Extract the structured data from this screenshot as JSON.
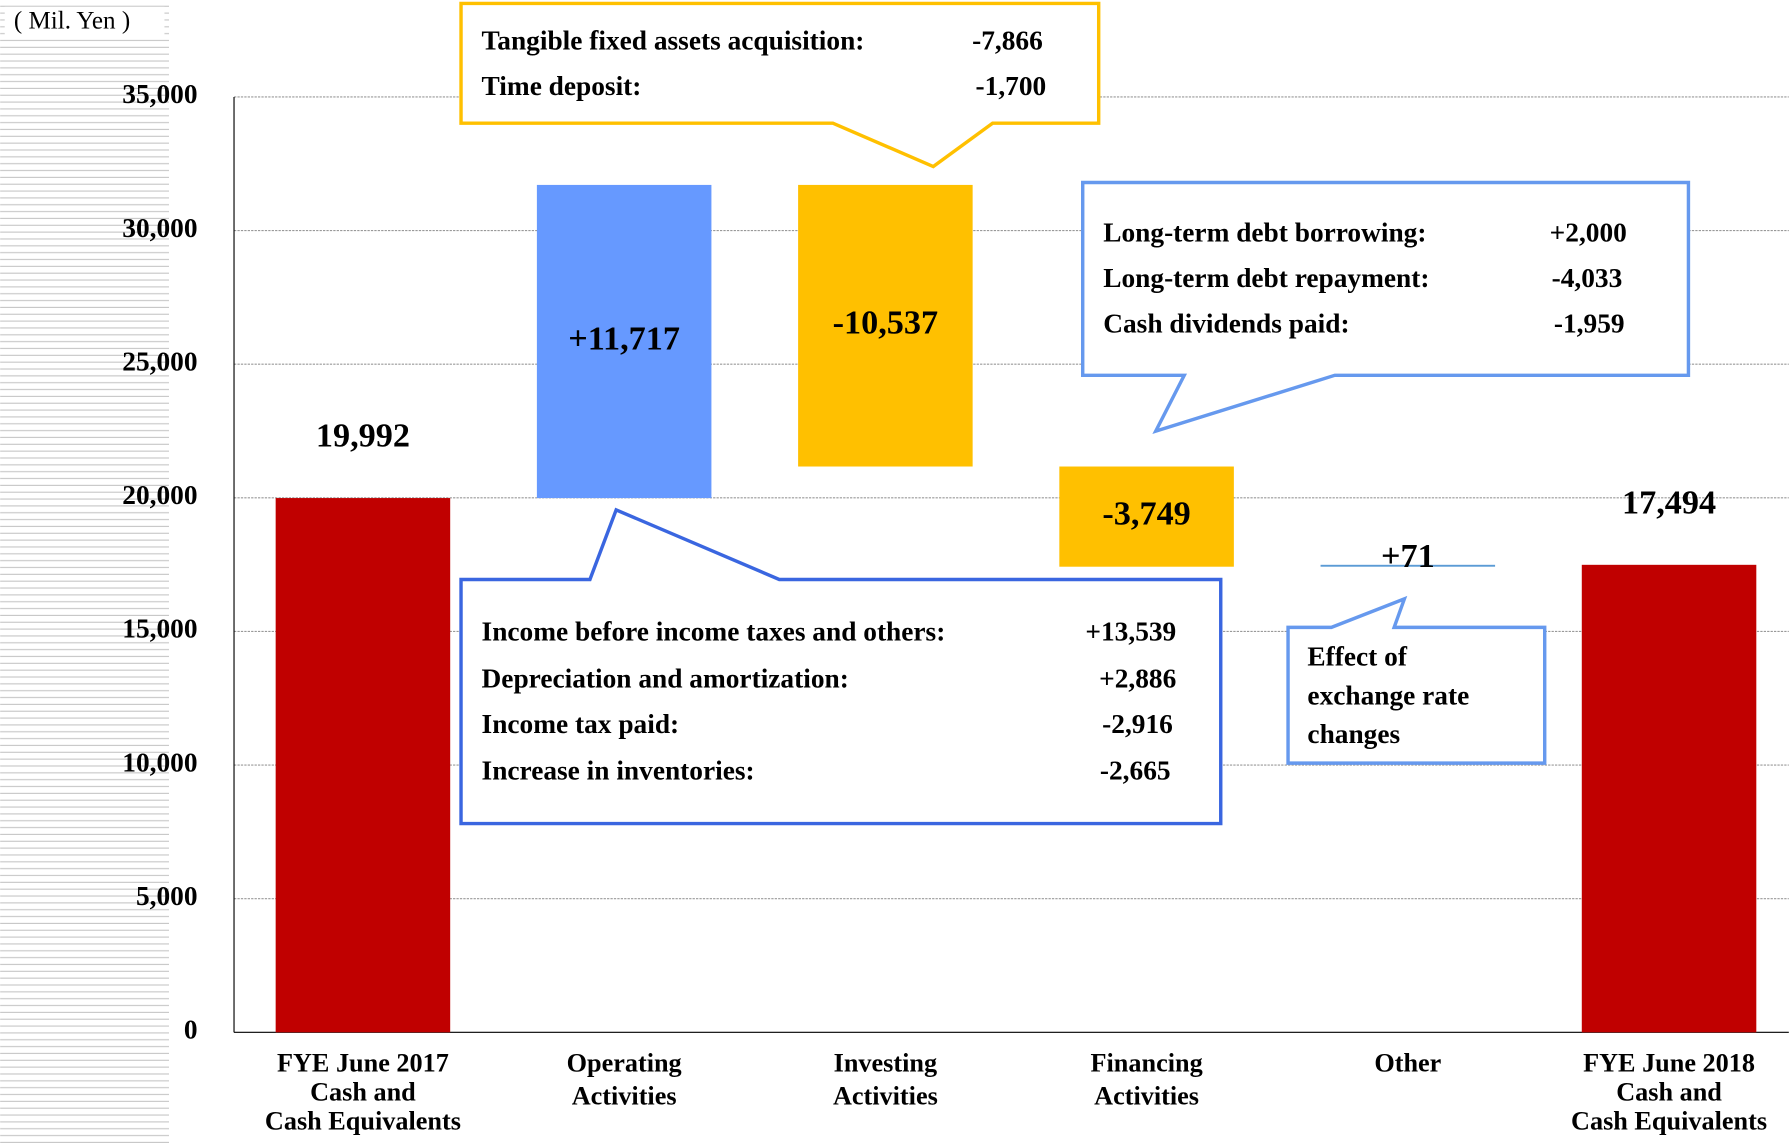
{
  "chart_data": {
    "type": "waterfall",
    "unit_label": "( Mil. Yen )",
    "categories": [
      "FYE June 2017\nCash and\nCash Equivalents",
      "Operating\nActivities",
      "Investing\nActivities",
      "Financing\nActivities",
      "Other",
      "FYE June 2018\nCash and\nCash Equivalents"
    ],
    "values": [
      19992,
      11717,
      -10537,
      -3749,
      71,
      17494
    ],
    "value_labels": [
      "19,992",
      "+11,717",
      "-10,537",
      "-3,749",
      "+71",
      "17,494"
    ],
    "colors": [
      "#c00000",
      "#6699ff",
      "#ffc000",
      "#ffc000",
      "#5b9bd5",
      "#c00000"
    ],
    "ylim": [
      0,
      35000
    ],
    "yticks": [
      0,
      {
        "value": 5000,
        "label": "5,000"
      },
      {
        "value": 10000,
        "label": "10,000"
      },
      {
        "value": 15000,
        "label": "15,000"
      },
      {
        "value": 20000,
        "label": "20,000"
      },
      {
        "value": 25000,
        "label": "25,000"
      },
      {
        "value": 30000,
        "label": "30,000"
      },
      {
        "value": 35000,
        "label": "35,000"
      }
    ],
    "grid": true,
    "callouts": [
      {
        "rows": [
          [
            "Tangible fixed assets acquisition:",
            "-7,866"
          ],
          [
            "Time deposit:",
            "-1,700"
          ]
        ]
      },
      {
        "rows": [
          [
            "Long-term debt borrowing:",
            "+2,000"
          ],
          [
            "Long-term debt repayment:",
            "-4,033"
          ],
          [
            "Cash dividends paid:",
            "-1,959"
          ]
        ]
      },
      {
        "rows": [
          [
            "Income before income taxes and others:",
            "+13,539"
          ],
          [
            "Depreciation and amortization:",
            "+2,886"
          ],
          [
            "Income tax paid:",
            "-2,916"
          ],
          [
            "Increase in inventories:",
            "-2,665"
          ]
        ]
      },
      {
        "rows": [
          [
            "Effect of"
          ],
          [
            "exchange rate"
          ],
          [
            "changes"
          ]
        ]
      }
    ]
  }
}
